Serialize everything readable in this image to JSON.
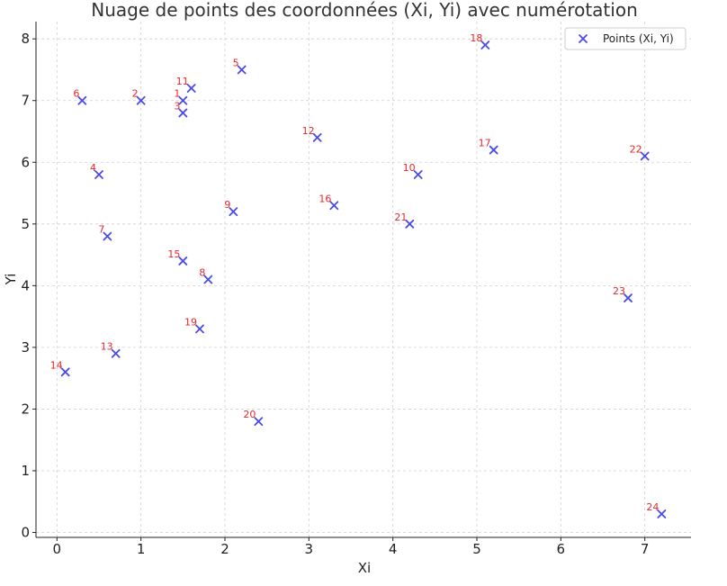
{
  "chart_data": {
    "type": "scatter",
    "title": "Nuage de points des coordonnées (Xi, Yi) avec numérotation",
    "xlabel": "Xi",
    "ylabel": "Yi",
    "xlim": [
      -0.25,
      7.55
    ],
    "ylim": [
      -0.08,
      8.28
    ],
    "xticks": [
      0,
      1,
      2,
      3,
      4,
      5,
      6,
      7
    ],
    "yticks": [
      0,
      1,
      2,
      3,
      4,
      5,
      6,
      7,
      8
    ],
    "grid": true,
    "legend": "top-right",
    "series": [
      {
        "name": "Points (Xi, Yi)",
        "marker": "x",
        "color": "#4a4ae8",
        "label_color": "#e8262a",
        "points": [
          {
            "label": "1",
            "x": 1.5,
            "y": 7.0
          },
          {
            "label": "2",
            "x": 1.0,
            "y": 7.0
          },
          {
            "label": "3",
            "x": 1.5,
            "y": 6.8
          },
          {
            "label": "4",
            "x": 0.5,
            "y": 5.8
          },
          {
            "label": "5",
            "x": 2.2,
            "y": 7.5
          },
          {
            "label": "6",
            "x": 0.3,
            "y": 7.0
          },
          {
            "label": "7",
            "x": 0.6,
            "y": 4.8
          },
          {
            "label": "8",
            "x": 1.8,
            "y": 4.1
          },
          {
            "label": "9",
            "x": 2.1,
            "y": 5.2
          },
          {
            "label": "10",
            "x": 4.3,
            "y": 5.8
          },
          {
            "label": "11",
            "x": 1.6,
            "y": 7.2
          },
          {
            "label": "12",
            "x": 3.1,
            "y": 6.4
          },
          {
            "label": "13",
            "x": 0.7,
            "y": 2.9
          },
          {
            "label": "14",
            "x": 0.1,
            "y": 2.6
          },
          {
            "label": "15",
            "x": 1.5,
            "y": 4.4
          },
          {
            "label": "16",
            "x": 3.3,
            "y": 5.3
          },
          {
            "label": "17",
            "x": 5.2,
            "y": 6.2
          },
          {
            "label": "18",
            "x": 5.1,
            "y": 7.9
          },
          {
            "label": "19",
            "x": 1.7,
            "y": 3.3
          },
          {
            "label": "20",
            "x": 2.4,
            "y": 1.8
          },
          {
            "label": "21",
            "x": 4.2,
            "y": 5.0
          },
          {
            "label": "22",
            "x": 7.0,
            "y": 6.1
          },
          {
            "label": "23",
            "x": 6.8,
            "y": 3.8
          },
          {
            "label": "24",
            "x": 7.2,
            "y": 0.3
          }
        ]
      }
    ]
  }
}
